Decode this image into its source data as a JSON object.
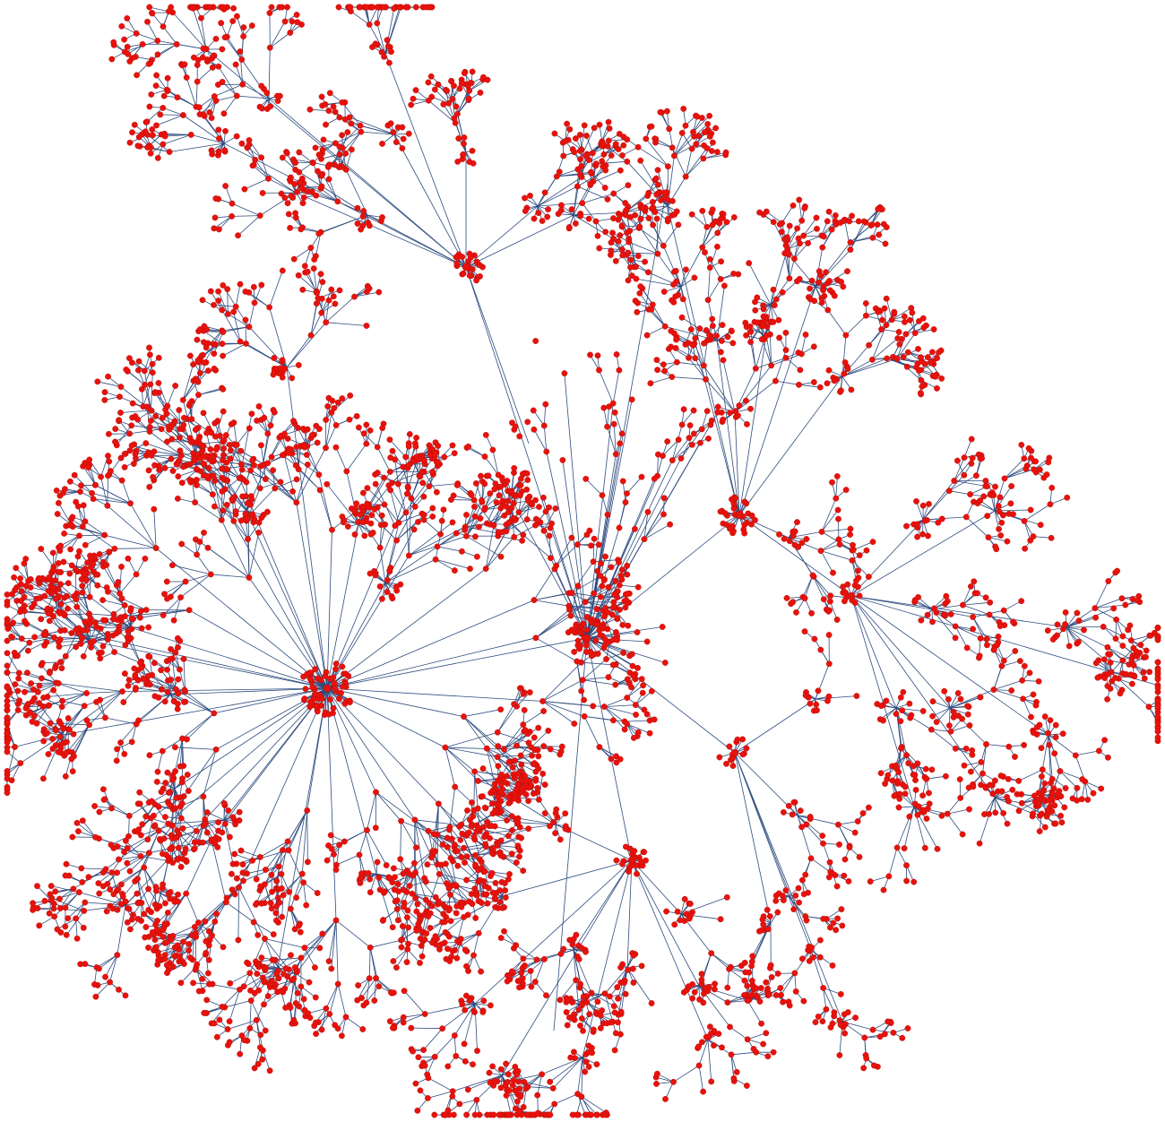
{
  "diagram": {
    "kind": "tree-network",
    "colors": {
      "background": "#ffffff",
      "node": "#e8120c",
      "node_outline": "#b40a06",
      "edge": "#2e4d7f"
    },
    "hubs": [
      {
        "id": "hub-west"
      },
      {
        "id": "hub-center"
      },
      {
        "id": "hub-north"
      },
      {
        "id": "hub-northeast"
      },
      {
        "id": "hub-east"
      },
      {
        "id": "hub-southeast"
      },
      {
        "id": "hub-south"
      }
    ]
  }
}
